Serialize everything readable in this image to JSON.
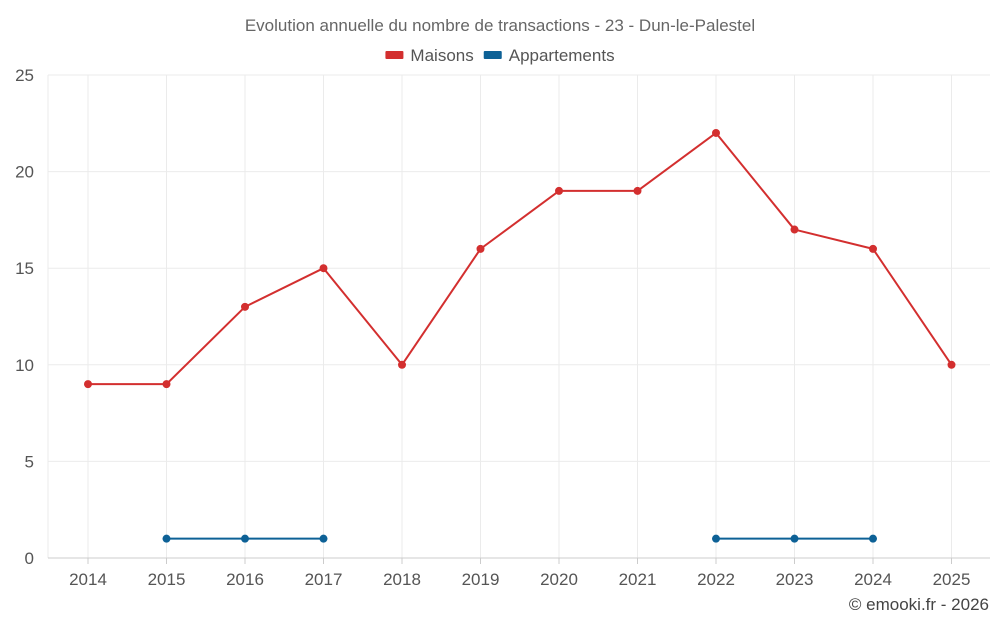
{
  "chart_data": {
    "type": "line",
    "title": "Evolution annuelle du nombre de transactions - 23 - Dun-le-Palestel",
    "categories": [
      "2014",
      "2015",
      "2016",
      "2017",
      "2018",
      "2019",
      "2020",
      "2021",
      "2022",
      "2023",
      "2024",
      "2025"
    ],
    "series": [
      {
        "name": "Maisons",
        "color": "#d32f2f",
        "values": [
          9,
          9,
          13,
          15,
          10,
          16,
          19,
          19,
          22,
          17,
          16,
          10
        ]
      },
      {
        "name": "Appartements",
        "color": "#0d6196",
        "values": [
          null,
          1,
          1,
          1,
          null,
          null,
          null,
          null,
          1,
          1,
          1,
          null
        ]
      }
    ],
    "ylim": [
      0,
      25
    ],
    "yticks": [
      0,
      5,
      10,
      15,
      20,
      25
    ],
    "grid": true,
    "legend_position": "top-center",
    "xlabel": "",
    "ylabel": ""
  },
  "credit": "© emooki.fr - 2026"
}
